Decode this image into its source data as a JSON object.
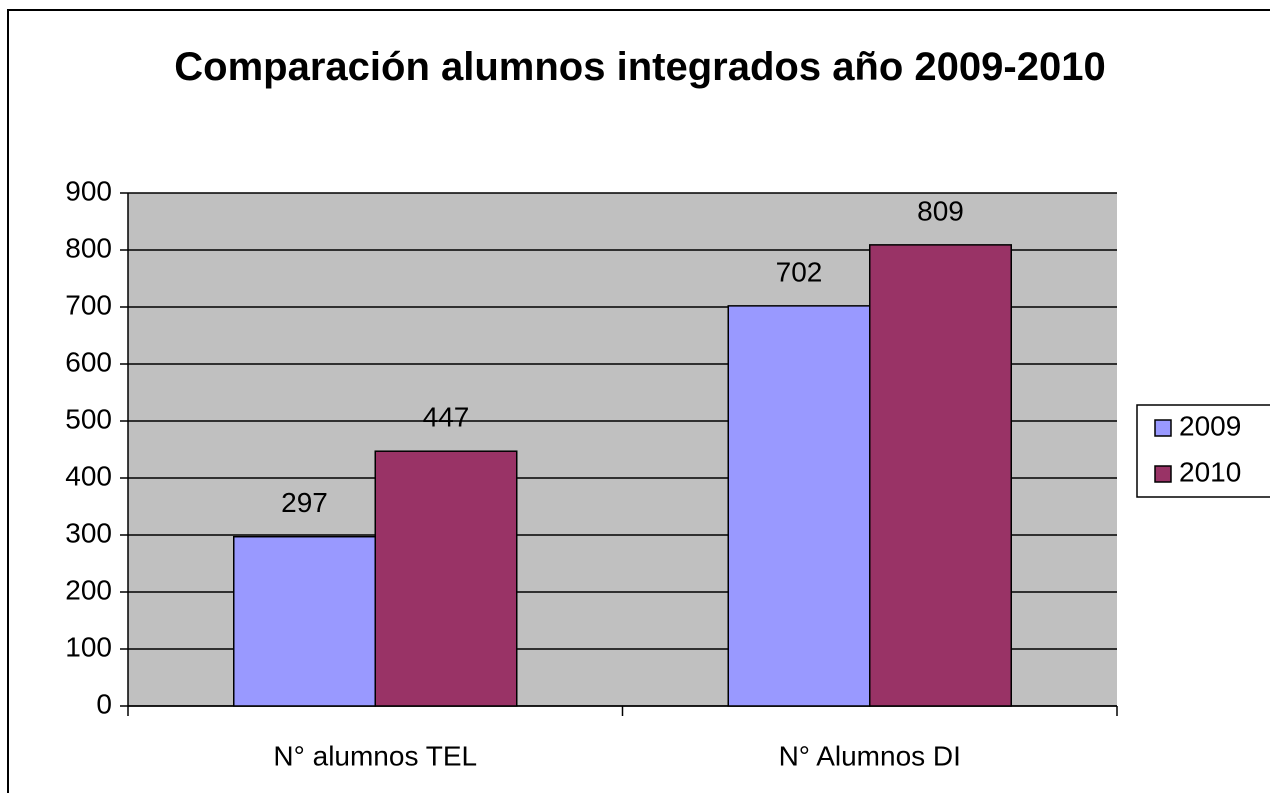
{
  "chart_data": {
    "type": "bar",
    "title": "Comparación alumnos integrados año 2009-2010",
    "categories": [
      "N° alumnos TEL",
      "N° Alumnos DI"
    ],
    "series": [
      {
        "name": "2009",
        "color": "#9999ff",
        "values": [
          297,
          702
        ]
      },
      {
        "name": "2010",
        "color": "#993366",
        "values": [
          447,
          809
        ]
      }
    ],
    "ylim": [
      0,
      900
    ],
    "yticks": [
      0,
      100,
      200,
      300,
      400,
      500,
      600,
      700,
      800,
      900
    ],
    "grid": true,
    "legend": "right"
  }
}
